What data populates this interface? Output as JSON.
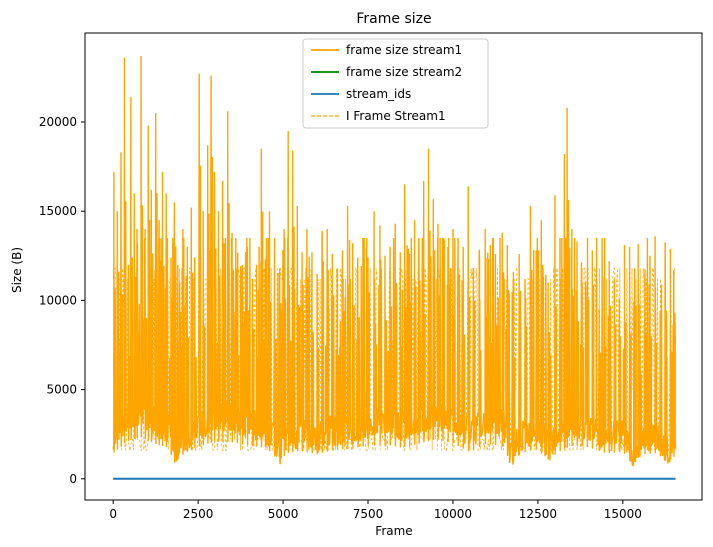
{
  "chart_data": {
    "type": "line",
    "title": "Frame size",
    "xlabel": "Frame",
    "ylabel": "Size (B)",
    "xlim": [
      -830,
      17330
    ],
    "ylim": [
      -1190,
      24990
    ],
    "x_ticks": [
      0,
      2500,
      5000,
      7500,
      10000,
      12500,
      15000
    ],
    "y_ticks": [
      0,
      5000,
      10000,
      15000,
      20000
    ],
    "grid": false,
    "legend_position": "upper center",
    "frame_count": 16550,
    "series": [
      {
        "name": "frame size stream1",
        "color": "#ffa500",
        "style": "solid",
        "baseline": [
          [
            0,
            2400
          ],
          [
            400,
            3500
          ],
          [
            800,
            3900
          ],
          [
            1200,
            3300
          ],
          [
            1600,
            2900
          ],
          [
            1800,
            1500
          ],
          [
            2100,
            2400
          ],
          [
            2500,
            3000
          ],
          [
            3000,
            3500
          ],
          [
            3500,
            3400
          ],
          [
            4000,
            3100
          ],
          [
            4500,
            2900
          ],
          [
            4900,
            1600
          ],
          [
            5100,
            2400
          ],
          [
            5500,
            2600
          ],
          [
            6000,
            2300
          ],
          [
            6500,
            2700
          ],
          [
            7000,
            2800
          ],
          [
            7500,
            3100
          ],
          [
            8000,
            3200
          ],
          [
            8500,
            2900
          ],
          [
            9000,
            3300
          ],
          [
            9500,
            3700
          ],
          [
            10000,
            3300
          ],
          [
            10500,
            2500
          ],
          [
            11000,
            3300
          ],
          [
            11500,
            3000
          ],
          [
            11700,
            1300
          ],
          [
            12000,
            2400
          ],
          [
            12500,
            2800
          ],
          [
            12800,
            1800
          ],
          [
            13200,
            2700
          ],
          [
            13600,
            3200
          ],
          [
            14000,
            2900
          ],
          [
            14500,
            2400
          ],
          [
            15000,
            2500
          ],
          [
            15300,
            1600
          ],
          [
            15600,
            2300
          ],
          [
            16000,
            2400
          ],
          [
            16300,
            1500
          ],
          [
            16550,
            2200
          ]
        ],
        "peaks": [
          [
            20,
            17200
          ],
          [
            120,
            15000
          ],
          [
            230,
            18300
          ],
          [
            330,
            23600
          ],
          [
            450,
            12000
          ],
          [
            520,
            21400
          ],
          [
            620,
            16000
          ],
          [
            700,
            14000
          ],
          [
            820,
            23700
          ],
          [
            940,
            14000
          ],
          [
            1030,
            19800
          ],
          [
            1120,
            16200
          ],
          [
            1250,
            20500
          ],
          [
            1350,
            14500
          ],
          [
            1450,
            17200
          ],
          [
            1560,
            16000
          ],
          [
            1700,
            12400
          ],
          [
            1800,
            15500
          ],
          [
            1900,
            12000
          ],
          [
            2050,
            14000
          ],
          [
            2180,
            13000
          ],
          [
            2300,
            15200
          ],
          [
            2400,
            12300
          ],
          [
            2530,
            22700
          ],
          [
            2650,
            15000
          ],
          [
            2780,
            18700
          ],
          [
            2880,
            22600
          ],
          [
            2980,
            17200
          ],
          [
            3100,
            15000
          ],
          [
            3220,
            16700
          ],
          [
            3370,
            20600
          ],
          [
            3500,
            13800
          ],
          [
            3650,
            11800
          ],
          [
            3800,
            12000
          ],
          [
            3950,
            13000
          ],
          [
            4100,
            11200
          ],
          [
            4220,
            12000
          ],
          [
            4360,
            18500
          ],
          [
            4480,
            12300
          ],
          [
            4600,
            15000
          ],
          [
            4750,
            13500
          ],
          [
            4900,
            11800
          ],
          [
            5030,
            14000
          ],
          [
            5150,
            19500
          ],
          [
            5280,
            18400
          ],
          [
            5420,
            15300
          ],
          [
            5560,
            12700
          ],
          [
            5700,
            14000
          ],
          [
            5850,
            12700
          ],
          [
            6000,
            11500
          ],
          [
            6150,
            13900
          ],
          [
            6300,
            14000
          ],
          [
            6450,
            12600
          ],
          [
            6600,
            11800
          ],
          [
            6750,
            12800
          ],
          [
            6900,
            15300
          ],
          [
            7050,
            13200
          ],
          [
            7200,
            12400
          ],
          [
            7350,
            13500
          ],
          [
            7500,
            12400
          ],
          [
            7680,
            15000
          ],
          [
            7850,
            14200
          ],
          [
            8000,
            12500
          ],
          [
            8150,
            13000
          ],
          [
            8300,
            14300
          ],
          [
            8450,
            12700
          ],
          [
            8580,
            16500
          ],
          [
            8720,
            12600
          ],
          [
            8870,
            14500
          ],
          [
            9000,
            12300
          ],
          [
            9140,
            16700
          ],
          [
            9280,
            18500
          ],
          [
            9420,
            15700
          ],
          [
            9560,
            14300
          ],
          [
            9700,
            12400
          ],
          [
            9850,
            13000
          ],
          [
            10000,
            14000
          ],
          [
            10150,
            13500
          ],
          [
            10300,
            13000
          ],
          [
            10450,
            16400
          ],
          [
            10600,
            11800
          ],
          [
            10780,
            12300
          ],
          [
            10950,
            14000
          ],
          [
            11100,
            13100
          ],
          [
            11250,
            12600
          ],
          [
            11450,
            13800
          ],
          [
            11600,
            13100
          ],
          [
            11780,
            11600
          ],
          [
            11950,
            12600
          ],
          [
            12120,
            11200
          ],
          [
            12280,
            15300
          ],
          [
            12450,
            12800
          ],
          [
            12600,
            14500
          ],
          [
            12800,
            11000
          ],
          [
            13000,
            15900
          ],
          [
            13150,
            13500
          ],
          [
            13280,
            18200
          ],
          [
            13360,
            20800
          ],
          [
            13500,
            14000
          ],
          [
            13650,
            13300
          ],
          [
            13800,
            11000
          ],
          [
            13950,
            10800
          ],
          [
            14100,
            12800
          ],
          [
            14300,
            9500
          ],
          [
            14450,
            11300
          ],
          [
            14600,
            12200
          ],
          [
            14750,
            11200
          ],
          [
            14900,
            10100
          ],
          [
            15050,
            13100
          ],
          [
            15200,
            13000
          ],
          [
            15350,
            11800
          ],
          [
            15500,
            9800
          ],
          [
            15650,
            11300
          ],
          [
            15800,
            12500
          ],
          [
            15950,
            13600
          ],
          [
            16100,
            9400
          ],
          [
            16250,
            11600
          ],
          [
            16400,
            12900
          ],
          [
            16500,
            11700
          ]
        ]
      },
      {
        "name": "frame size stream2",
        "color": "#008000",
        "style": "solid",
        "x": [],
        "y": []
      },
      {
        "name": "stream_ids",
        "color": "#1f77b4",
        "style": "solid",
        "x": [
          0,
          16550
        ],
        "y": [
          1,
          1
        ]
      },
      {
        "name": "I Frame Stream1",
        "color": "#ffa500",
        "style": "dashed",
        "levels_y": [
          1600,
          2200,
          5000,
          11200,
          11800
        ],
        "x_range": [
          0,
          16550
        ]
      }
    ]
  }
}
